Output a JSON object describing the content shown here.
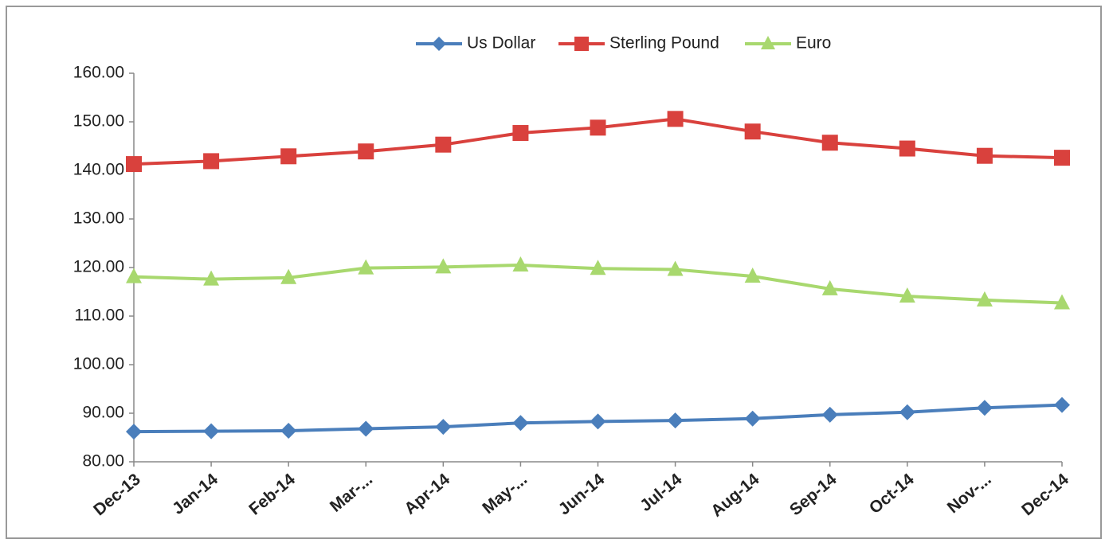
{
  "chart_data": {
    "type": "line",
    "categories": [
      "Dec-13",
      "Jan-14",
      "Feb-14",
      "Mar-...",
      "Apr-14",
      "May-...",
      "Jun-14",
      "Jul-14",
      "Aug-14",
      "Sep-14",
      "Oct-14",
      "Nov-...",
      "Dec-14"
    ],
    "series": [
      {
        "name": "Us Dollar",
        "color": "#4a7ebb",
        "marker": "diamond",
        "values": [
          86.2,
          86.3,
          86.4,
          86.8,
          87.2,
          88.0,
          88.3,
          88.5,
          88.9,
          89.7,
          90.2,
          91.1,
          91.7
        ]
      },
      {
        "name": "Sterling Pound",
        "color": "#d9413d",
        "marker": "square",
        "values": [
          141.3,
          141.9,
          142.9,
          143.9,
          145.3,
          147.7,
          148.8,
          150.6,
          148.0,
          145.7,
          144.5,
          143.0,
          142.6
        ]
      },
      {
        "name": "Euro",
        "color": "#a8d86e",
        "marker": "triangle",
        "values": [
          118.1,
          117.6,
          117.9,
          119.9,
          120.1,
          120.5,
          119.8,
          119.6,
          118.2,
          115.6,
          114.1,
          113.3,
          112.7
        ]
      }
    ],
    "ylim": [
      80,
      160
    ],
    "yticks": [
      {
        "value": 80,
        "label": "80.00"
      },
      {
        "value": 90,
        "label": "90.00"
      },
      {
        "value": 100,
        "label": "100.00"
      },
      {
        "value": 110,
        "label": "110.00"
      },
      {
        "value": 120,
        "label": "120.00"
      },
      {
        "value": 130,
        "label": "130.00"
      },
      {
        "value": 140,
        "label": "140.00"
      },
      {
        "value": 150,
        "label": "150.00"
      },
      {
        "value": 160,
        "label": "160.00"
      }
    ],
    "grid": false,
    "legend": "top"
  }
}
